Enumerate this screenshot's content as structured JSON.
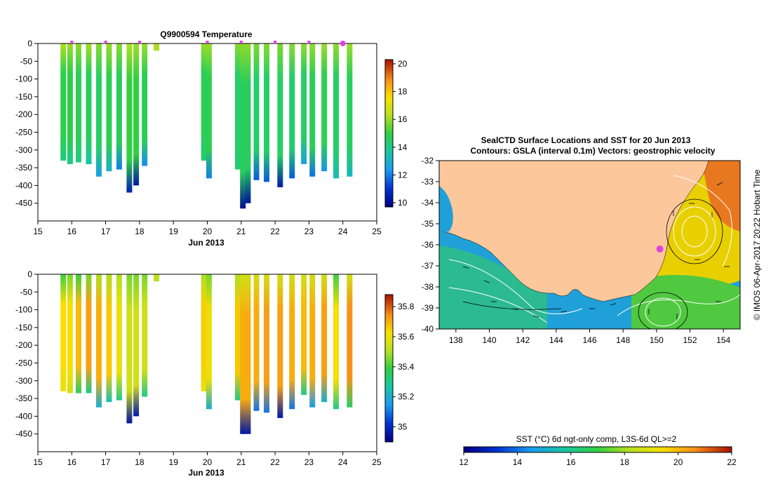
{
  "chart_data": [
    {
      "type": "heatmap",
      "title": "Q9900594  Temperature",
      "xlabel": "Jun 2013",
      "ylabel": "",
      "x_ticks": [
        "15",
        "16",
        "17",
        "18",
        "19",
        "20",
        "21",
        "22",
        "23",
        "24",
        "25"
      ],
      "xlim": [
        15,
        25
      ],
      "y_ticks": [
        0,
        -50,
        -100,
        -150,
        -200,
        -250,
        -300,
        -350,
        -400,
        -450
      ],
      "ylim": [
        -500,
        0
      ],
      "colorbar": {
        "ticks": [
          10,
          12,
          14,
          16,
          18,
          20
        ],
        "range": [
          9.7,
          20.3
        ]
      },
      "surface_markers": [
        16.0,
        17.0,
        18.0,
        20.0,
        21.0,
        22.0,
        23.0
      ],
      "current_marker": 24.0,
      "profiles": [
        {
          "x": 15.75,
          "bottom": -330,
          "surface": 16.2,
          "mid": 14.8,
          "deep": 14.2
        },
        {
          "x": 15.95,
          "bottom": -340,
          "surface": 16.0,
          "mid": 14.9,
          "deep": 14.0
        },
        {
          "x": 16.2,
          "bottom": -335,
          "surface": 15.9,
          "mid": 14.7,
          "deep": 14.1
        },
        {
          "x": 16.5,
          "bottom": -340,
          "surface": 16.1,
          "mid": 14.6,
          "deep": 13.6
        },
        {
          "x": 16.8,
          "bottom": -375,
          "surface": 15.8,
          "mid": 14.5,
          "deep": 12.5
        },
        {
          "x": 17.1,
          "bottom": -360,
          "surface": 16.0,
          "mid": 14.8,
          "deep": 13.0
        },
        {
          "x": 17.4,
          "bottom": -355,
          "surface": 15.8,
          "mid": 14.6,
          "deep": 12.0
        },
        {
          "x": 17.7,
          "bottom": -420,
          "surface": 16.2,
          "mid": 15.0,
          "deep": 10.5
        },
        {
          "x": 17.9,
          "bottom": -400,
          "surface": 16.0,
          "mid": 15.0,
          "deep": 10.3
        },
        {
          "x": 18.15,
          "bottom": -345,
          "surface": 16.0,
          "mid": 14.7,
          "deep": 12.2
        },
        {
          "x": 18.5,
          "bottom": -20,
          "surface": 16.3,
          "mid": 16.2,
          "deep": 16.0
        },
        {
          "x": 19.9,
          "bottom": -330,
          "surface": 16.0,
          "mid": 14.7,
          "deep": 14.3
        },
        {
          "x": 20.05,
          "bottom": -380,
          "surface": 16.0,
          "mid": 14.8,
          "deep": 12.0
        },
        {
          "x": 20.9,
          "bottom": -355,
          "surface": 15.8,
          "mid": 14.5,
          "deep": 14.3
        },
        {
          "x": 21.05,
          "bottom": -465,
          "surface": 15.9,
          "mid": 14.6,
          "deep": 10.0
        },
        {
          "x": 21.2,
          "bottom": -450,
          "surface": 15.9,
          "mid": 14.6,
          "deep": 10.2
        },
        {
          "x": 21.45,
          "bottom": -385,
          "surface": 15.7,
          "mid": 14.4,
          "deep": 11.5
        },
        {
          "x": 21.75,
          "bottom": -390,
          "surface": 15.8,
          "mid": 14.5,
          "deep": 11.5
        },
        {
          "x": 22.15,
          "bottom": -405,
          "surface": 15.7,
          "mid": 14.5,
          "deep": 10.4
        },
        {
          "x": 22.5,
          "bottom": -380,
          "surface": 15.8,
          "mid": 14.4,
          "deep": 11.5
        },
        {
          "x": 22.85,
          "bottom": -340,
          "surface": 15.9,
          "mid": 14.5,
          "deep": 12.5
        },
        {
          "x": 23.1,
          "bottom": -375,
          "surface": 15.9,
          "mid": 14.7,
          "deep": 11.8
        },
        {
          "x": 23.45,
          "bottom": -360,
          "surface": 16.0,
          "mid": 14.8,
          "deep": 12.3
        },
        {
          "x": 23.8,
          "bottom": -380,
          "surface": 15.9,
          "mid": 14.5,
          "deep": 13.4
        },
        {
          "x": 24.2,
          "bottom": -375,
          "surface": 16.0,
          "mid": 14.6,
          "deep": 13.2
        }
      ]
    },
    {
      "type": "heatmap",
      "title": "",
      "xlabel": "Jun 2013",
      "ylabel": "",
      "x_ticks": [
        "15",
        "16",
        "17",
        "18",
        "19",
        "20",
        "21",
        "22",
        "23",
        "24",
        "25"
      ],
      "xlim": [
        15,
        25
      ],
      "y_ticks": [
        0,
        -50,
        -100,
        -150,
        -200,
        -250,
        -300,
        -350,
        -400,
        -450
      ],
      "ylim": [
        -500,
        0
      ],
      "colorbar": {
        "ticks": [
          "35",
          "35.2",
          "35.4",
          "35.6",
          "35.8"
        ],
        "range": [
          34.9,
          35.88
        ]
      },
      "profiles": [
        {
          "x": 15.75,
          "bottom": -330,
          "surface": 35.4,
          "mid": 35.63,
          "deep": 35.6
        },
        {
          "x": 15.95,
          "bottom": -335,
          "surface": 35.45,
          "mid": 35.62,
          "deep": 35.55
        },
        {
          "x": 16.2,
          "bottom": -335,
          "surface": 35.4,
          "mid": 35.68,
          "deep": 35.35
        },
        {
          "x": 16.5,
          "bottom": -335,
          "surface": 35.45,
          "mid": 35.72,
          "deep": 35.3
        },
        {
          "x": 16.8,
          "bottom": -375,
          "surface": 35.5,
          "mid": 35.7,
          "deep": 35.2
        },
        {
          "x": 17.1,
          "bottom": -360,
          "surface": 35.5,
          "mid": 35.66,
          "deep": 35.25
        },
        {
          "x": 17.4,
          "bottom": -355,
          "surface": 35.5,
          "mid": 35.6,
          "deep": 35.3
        },
        {
          "x": 17.7,
          "bottom": -420,
          "surface": 35.45,
          "mid": 35.55,
          "deep": 34.95
        },
        {
          "x": 17.9,
          "bottom": -400,
          "surface": 35.45,
          "mid": 35.55,
          "deep": 34.96
        },
        {
          "x": 18.15,
          "bottom": -345,
          "surface": 35.45,
          "mid": 35.55,
          "deep": 35.3
        },
        {
          "x": 18.5,
          "bottom": -20,
          "surface": 35.52,
          "mid": 35.52,
          "deep": 35.5
        },
        {
          "x": 19.9,
          "bottom": -330,
          "surface": 35.5,
          "mid": 35.65,
          "deep": 35.6
        },
        {
          "x": 20.05,
          "bottom": -380,
          "surface": 35.45,
          "mid": 35.6,
          "deep": 35.2
        },
        {
          "x": 20.9,
          "bottom": -355,
          "surface": 35.5,
          "mid": 35.66,
          "deep": 35.3
        },
        {
          "x": 21.05,
          "bottom": -450,
          "surface": 35.55,
          "mid": 35.7,
          "deep": 34.95
        },
        {
          "x": 21.2,
          "bottom": -450,
          "surface": 35.55,
          "mid": 35.7,
          "deep": 34.96
        },
        {
          "x": 21.45,
          "bottom": -385,
          "surface": 35.55,
          "mid": 35.7,
          "deep": 35.1
        },
        {
          "x": 21.75,
          "bottom": -390,
          "surface": 35.55,
          "mid": 35.72,
          "deep": 35.1
        },
        {
          "x": 22.15,
          "bottom": -405,
          "surface": 35.55,
          "mid": 35.72,
          "deep": 34.96
        },
        {
          "x": 22.5,
          "bottom": -380,
          "surface": 35.55,
          "mid": 35.7,
          "deep": 35.1
        },
        {
          "x": 22.85,
          "bottom": -340,
          "surface": 35.55,
          "mid": 35.68,
          "deep": 35.3
        },
        {
          "x": 23.1,
          "bottom": -375,
          "surface": 35.55,
          "mid": 35.7,
          "deep": 35.15
        },
        {
          "x": 23.45,
          "bottom": -360,
          "surface": 35.55,
          "mid": 35.72,
          "deep": 35.2
        },
        {
          "x": 23.8,
          "bottom": -380,
          "surface": 35.4,
          "mid": 35.62,
          "deep": 35.3
        },
        {
          "x": 24.2,
          "bottom": -375,
          "surface": 35.55,
          "mid": 35.74,
          "deep": 35.35
        }
      ]
    },
    {
      "type": "heatmap",
      "title": "SealCTD Surface Locations and SST for 20 Jun 2013",
      "subtitle": "Contours: GSLA (interval 0.1m) Vectors: geostrophic velocity",
      "x_ticks": [
        "138",
        "140",
        "142",
        "144",
        "146",
        "148",
        "150",
        "152",
        "154"
      ],
      "xlim": [
        137,
        155
      ],
      "y_ticks": [
        "-32",
        "-33",
        "-34",
        "-35",
        "-36",
        "-37",
        "-38",
        "-39",
        "-40"
      ],
      "ylim": [
        -40,
        -32
      ],
      "side_label": "© IMOS 06-Apr-2017 20:22 Hobart Time",
      "seal_location": {
        "lon": 150.2,
        "lat": -36.2
      },
      "colorbar": {
        "label": "SST (°C) 6d ngt-only comp, L3S-6d QL>=2",
        "ticks": [
          "12",
          "14",
          "16",
          "18",
          "20",
          "22"
        ],
        "range": [
          12,
          22
        ]
      }
    }
  ],
  "colors": {
    "land": "#FCC89B",
    "marker": "#E040E0",
    "white": "#FFFFFF"
  }
}
